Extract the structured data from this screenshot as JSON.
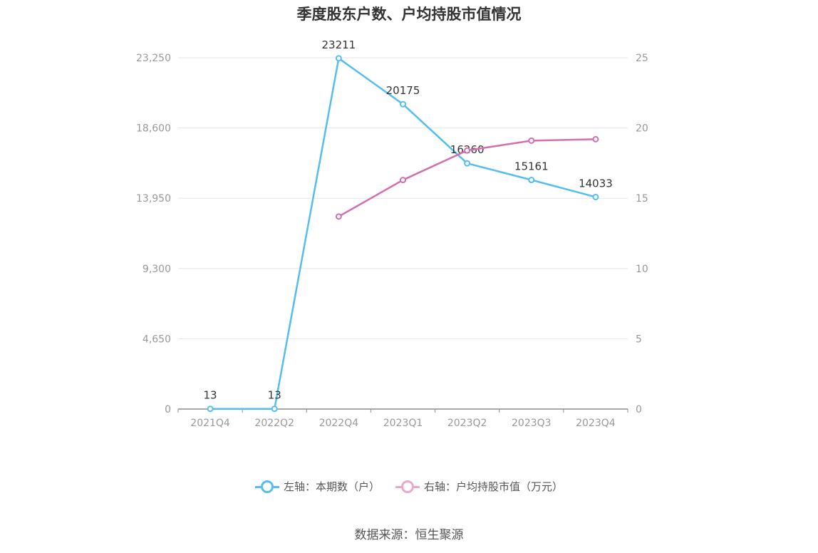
{
  "title": "季度股东户数、户均持股市值情况",
  "source": "数据来源：恒生聚源",
  "colors": {
    "left_series": "#56bdf0",
    "right_series": "#d36fae",
    "grid": "#e3e6ef",
    "axis": "#8c8c8c"
  },
  "chart_data": {
    "type": "line",
    "categories": [
      "2021Q4",
      "2022Q2",
      "2022Q4",
      "2023Q1",
      "2023Q2",
      "2023Q3",
      "2023Q4"
    ],
    "left_axis": {
      "ticks": [
        "0",
        "4,650",
        "9,300",
        "13,950",
        "18,600",
        "23,250"
      ],
      "ylim": [
        0,
        23250
      ]
    },
    "right_axis": {
      "ticks": [
        "0",
        "5",
        "10",
        "15",
        "20",
        "25"
      ],
      "ylim": [
        0,
        25
      ]
    },
    "grid": true,
    "legend_position": "bottom",
    "series": [
      {
        "name": "左轴：本期数（户）",
        "axis": "left",
        "values": [
          13,
          13,
          23211,
          20175,
          16260,
          15161,
          14033
        ],
        "labels": [
          "13",
          "13",
          "23211",
          "20175",
          "16260",
          "15161",
          "14033"
        ]
      },
      {
        "name": "右轴：户均持股市值（万元）",
        "axis": "right",
        "values": [
          null,
          null,
          13.7,
          16.3,
          18.4,
          19.1,
          19.2
        ]
      }
    ]
  }
}
